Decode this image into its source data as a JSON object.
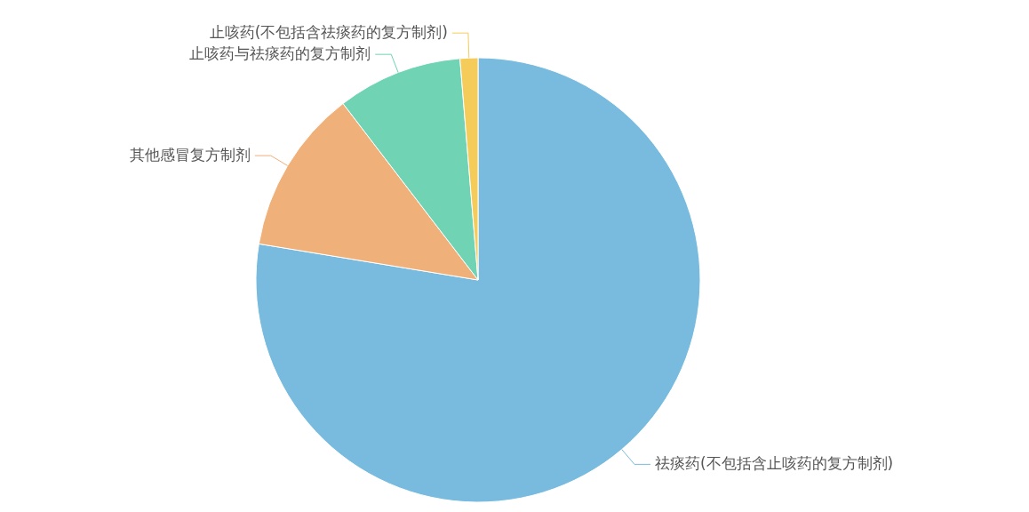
{
  "chart_data": {
    "type": "pie",
    "categories": [
      "祛痰药(不包括含止咳药的复方制剂)",
      "其他感冒复方制剂",
      "止咳药与祛痰药的复方制剂",
      "止咳药(不包括含祛痰药的复方制剂)"
    ],
    "values": [
      77.6,
      12.0,
      9.1,
      1.3
    ],
    "colors": [
      "#78bbde",
      "#f0b07a",
      "#6fd3b4",
      "#f5cc5a"
    ]
  }
}
